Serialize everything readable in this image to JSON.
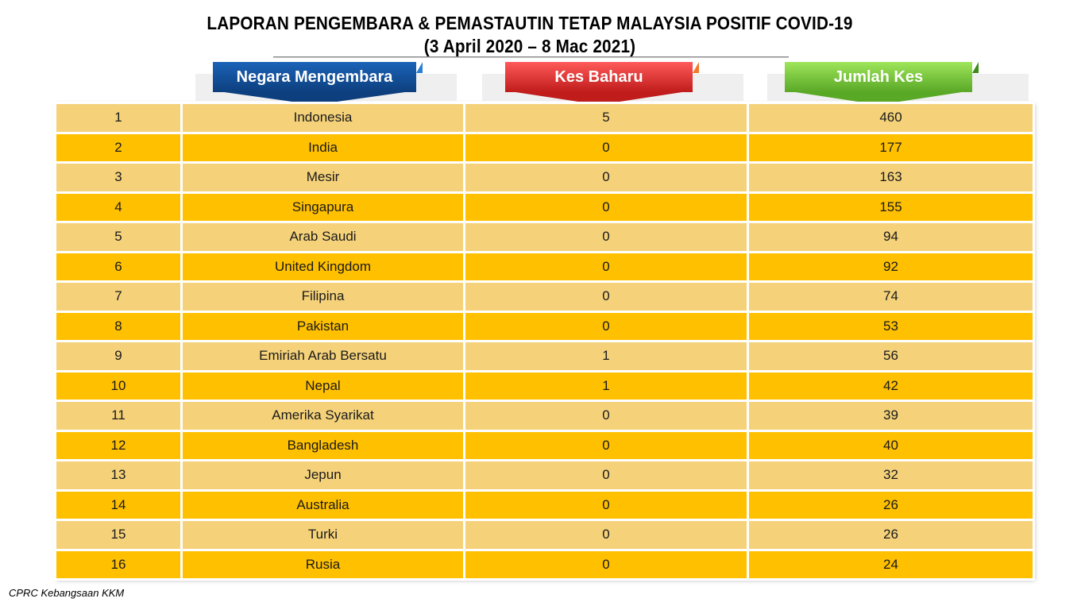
{
  "title_line1": "LAPORAN PENGEMBARA & PEMASTAUTIN TETAP MALAYSIA POSITIF COVID-19",
  "title_line2": "(3 April 2020 – 8 Mac 2021)",
  "headers": {
    "country": "Negara Mengembara",
    "new_cases": "Kes Baharu",
    "total_cases": "Jumlah Kes"
  },
  "colors": {
    "header_country": "#0d3f7e",
    "header_new_cases": "#c01c1c",
    "header_total_cases": "#59a826",
    "row_light": "#f5d27a",
    "row_dark": "#ffc000"
  },
  "rows": [
    {
      "no": "1",
      "country": "Indonesia",
      "new": "5",
      "total": "460"
    },
    {
      "no": "2",
      "country": "India",
      "new": "0",
      "total": "177"
    },
    {
      "no": "3",
      "country": "Mesir",
      "new": "0",
      "total": "163"
    },
    {
      "no": "4",
      "country": "Singapura",
      "new": "0",
      "total": "155"
    },
    {
      "no": "5",
      "country": "Arab Saudi",
      "new": "0",
      "total": "94"
    },
    {
      "no": "6",
      "country": "United Kingdom",
      "new": "0",
      "total": "92"
    },
    {
      "no": "7",
      "country": "Filipina",
      "new": "0",
      "total": "74"
    },
    {
      "no": "8",
      "country": "Pakistan",
      "new": "0",
      "total": "53"
    },
    {
      "no": "9",
      "country": "Emiriah Arab Bersatu",
      "new": "1",
      "total": "56"
    },
    {
      "no": "10",
      "country": "Nepal",
      "new": "1",
      "total": "42"
    },
    {
      "no": "11",
      "country": "Amerika Syarikat",
      "new": "0",
      "total": "39"
    },
    {
      "no": "12",
      "country": "Bangladesh",
      "new": "0",
      "total": "40"
    },
    {
      "no": "13",
      "country": "Jepun",
      "new": "0",
      "total": "32"
    },
    {
      "no": "14",
      "country": "Australia",
      "new": "0",
      "total": "26"
    },
    {
      "no": "15",
      "country": "Turki",
      "new": "0",
      "total": "26"
    },
    {
      "no": "16",
      "country": "Rusia",
      "new": "0",
      "total": "24"
    }
  ],
  "footer": "CPRC Kebangsaan KKM"
}
